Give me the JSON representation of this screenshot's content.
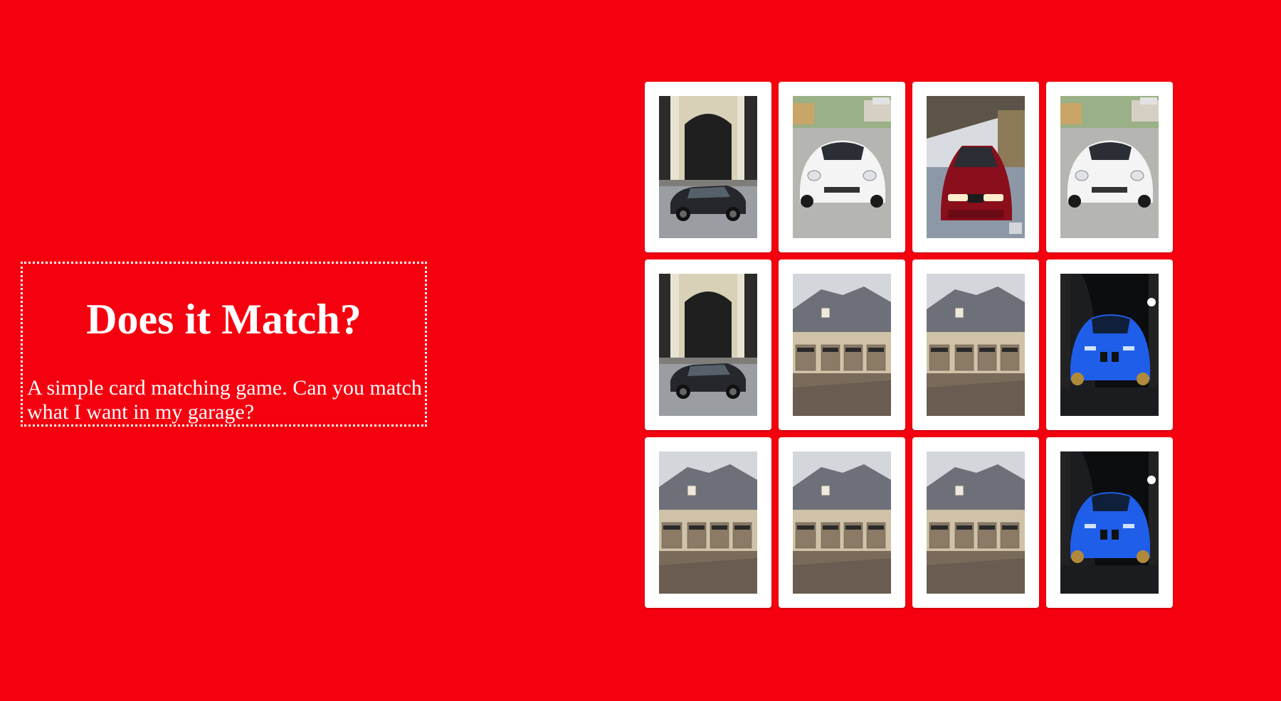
{
  "intro": {
    "title": "Does it Match?",
    "description": "A simple card matching game. Can you match what I want in my garage?"
  },
  "colors": {
    "background": "#f5000f",
    "card": "#ffffff",
    "text": "#ffffff"
  },
  "cards": [
    {
      "image": "black-wagon"
    },
    {
      "image": "white-porsche"
    },
    {
      "image": "red-bmw"
    },
    {
      "image": "white-porsche"
    },
    {
      "image": "black-wagon"
    },
    {
      "image": "garage"
    },
    {
      "image": "garage"
    },
    {
      "image": "blue-bmw"
    },
    {
      "image": "garage"
    },
    {
      "image": "garage"
    },
    {
      "image": "garage"
    },
    {
      "image": "blue-bmw"
    }
  ]
}
